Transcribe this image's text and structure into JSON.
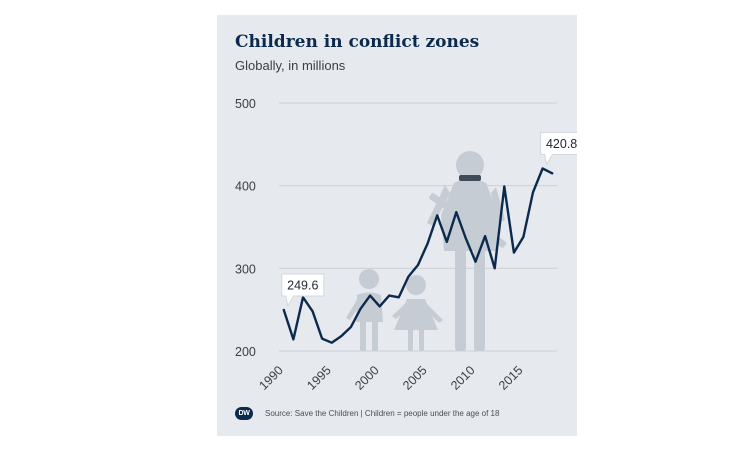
{
  "card": {
    "title": "Children in conflict zones",
    "subtitle": "Globally, in millions",
    "source": "Source: Save the Children | Children = people under the age of 18",
    "logo": "DW"
  },
  "chart_data": {
    "type": "line",
    "title": "Children in conflict zones",
    "subtitle": "Globally, in millions",
    "xlabel": "",
    "ylabel": "",
    "x_ticks": [
      1990,
      1995,
      2000,
      2005,
      2010,
      2015
    ],
    "y_ticks": [
      200,
      300,
      400,
      500
    ],
    "ylim": [
      200,
      500
    ],
    "xlim": [
      1989.5,
      2018.5
    ],
    "grid": "horizontal",
    "legend": "none",
    "line_color": "#0c2a4d",
    "series": [
      {
        "x": [
          1990,
          1991,
          1992,
          1993,
          1994,
          1995,
          1996,
          1997,
          1998,
          1999,
          2000,
          2001,
          2002,
          2003,
          2004,
          2005,
          2006,
          2007,
          2008,
          2009,
          2010,
          2011,
          2012,
          2013,
          2014,
          2015,
          2016,
          2017,
          2018
        ],
        "y": [
          249.6,
          214,
          265,
          248,
          215,
          210,
          218,
          229,
          251,
          267,
          254,
          267,
          265,
          290,
          304,
          330,
          364,
          332,
          368,
          336,
          308,
          339,
          300,
          399,
          319,
          338,
          392,
          420.8,
          415
        ]
      }
    ],
    "annotations": [
      {
        "x": 1990,
        "y": 249.6,
        "text": "249.6"
      },
      {
        "x": 2017,
        "y": 420.8,
        "text": "420.8"
      }
    ]
  }
}
